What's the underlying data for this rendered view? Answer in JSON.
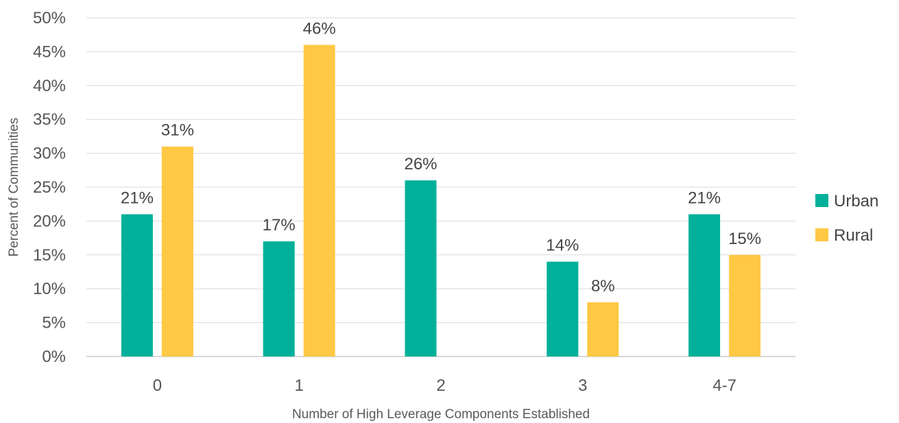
{
  "chart_data": {
    "type": "bar",
    "title": "",
    "xlabel": "Number of High Leverage Components Established",
    "ylabel": "Percent of Communities",
    "categories": [
      "0",
      "1",
      "2",
      "3",
      "4-7"
    ],
    "series": [
      {
        "name": "Urban",
        "color": "#00B09A",
        "values": [
          21,
          17,
          26,
          14,
          21
        ],
        "labels": [
          "21%",
          "17%",
          "26%",
          "14%",
          "21%"
        ]
      },
      {
        "name": "Rural",
        "color": "#FFC845",
        "values": [
          31,
          46,
          0,
          8,
          15
        ],
        "labels": [
          "31%",
          "46%",
          "",
          "8%",
          "15%"
        ]
      }
    ],
    "ylim": [
      0,
      50
    ],
    "yticks": [
      "0%",
      "5%",
      "10%",
      "15%",
      "20%",
      "25%",
      "30%",
      "35%",
      "40%",
      "45%",
      "50%"
    ],
    "ytick_values": [
      0,
      5,
      10,
      15,
      20,
      25,
      30,
      35,
      40,
      45,
      50
    ],
    "grid": true,
    "legend_position": "right"
  }
}
